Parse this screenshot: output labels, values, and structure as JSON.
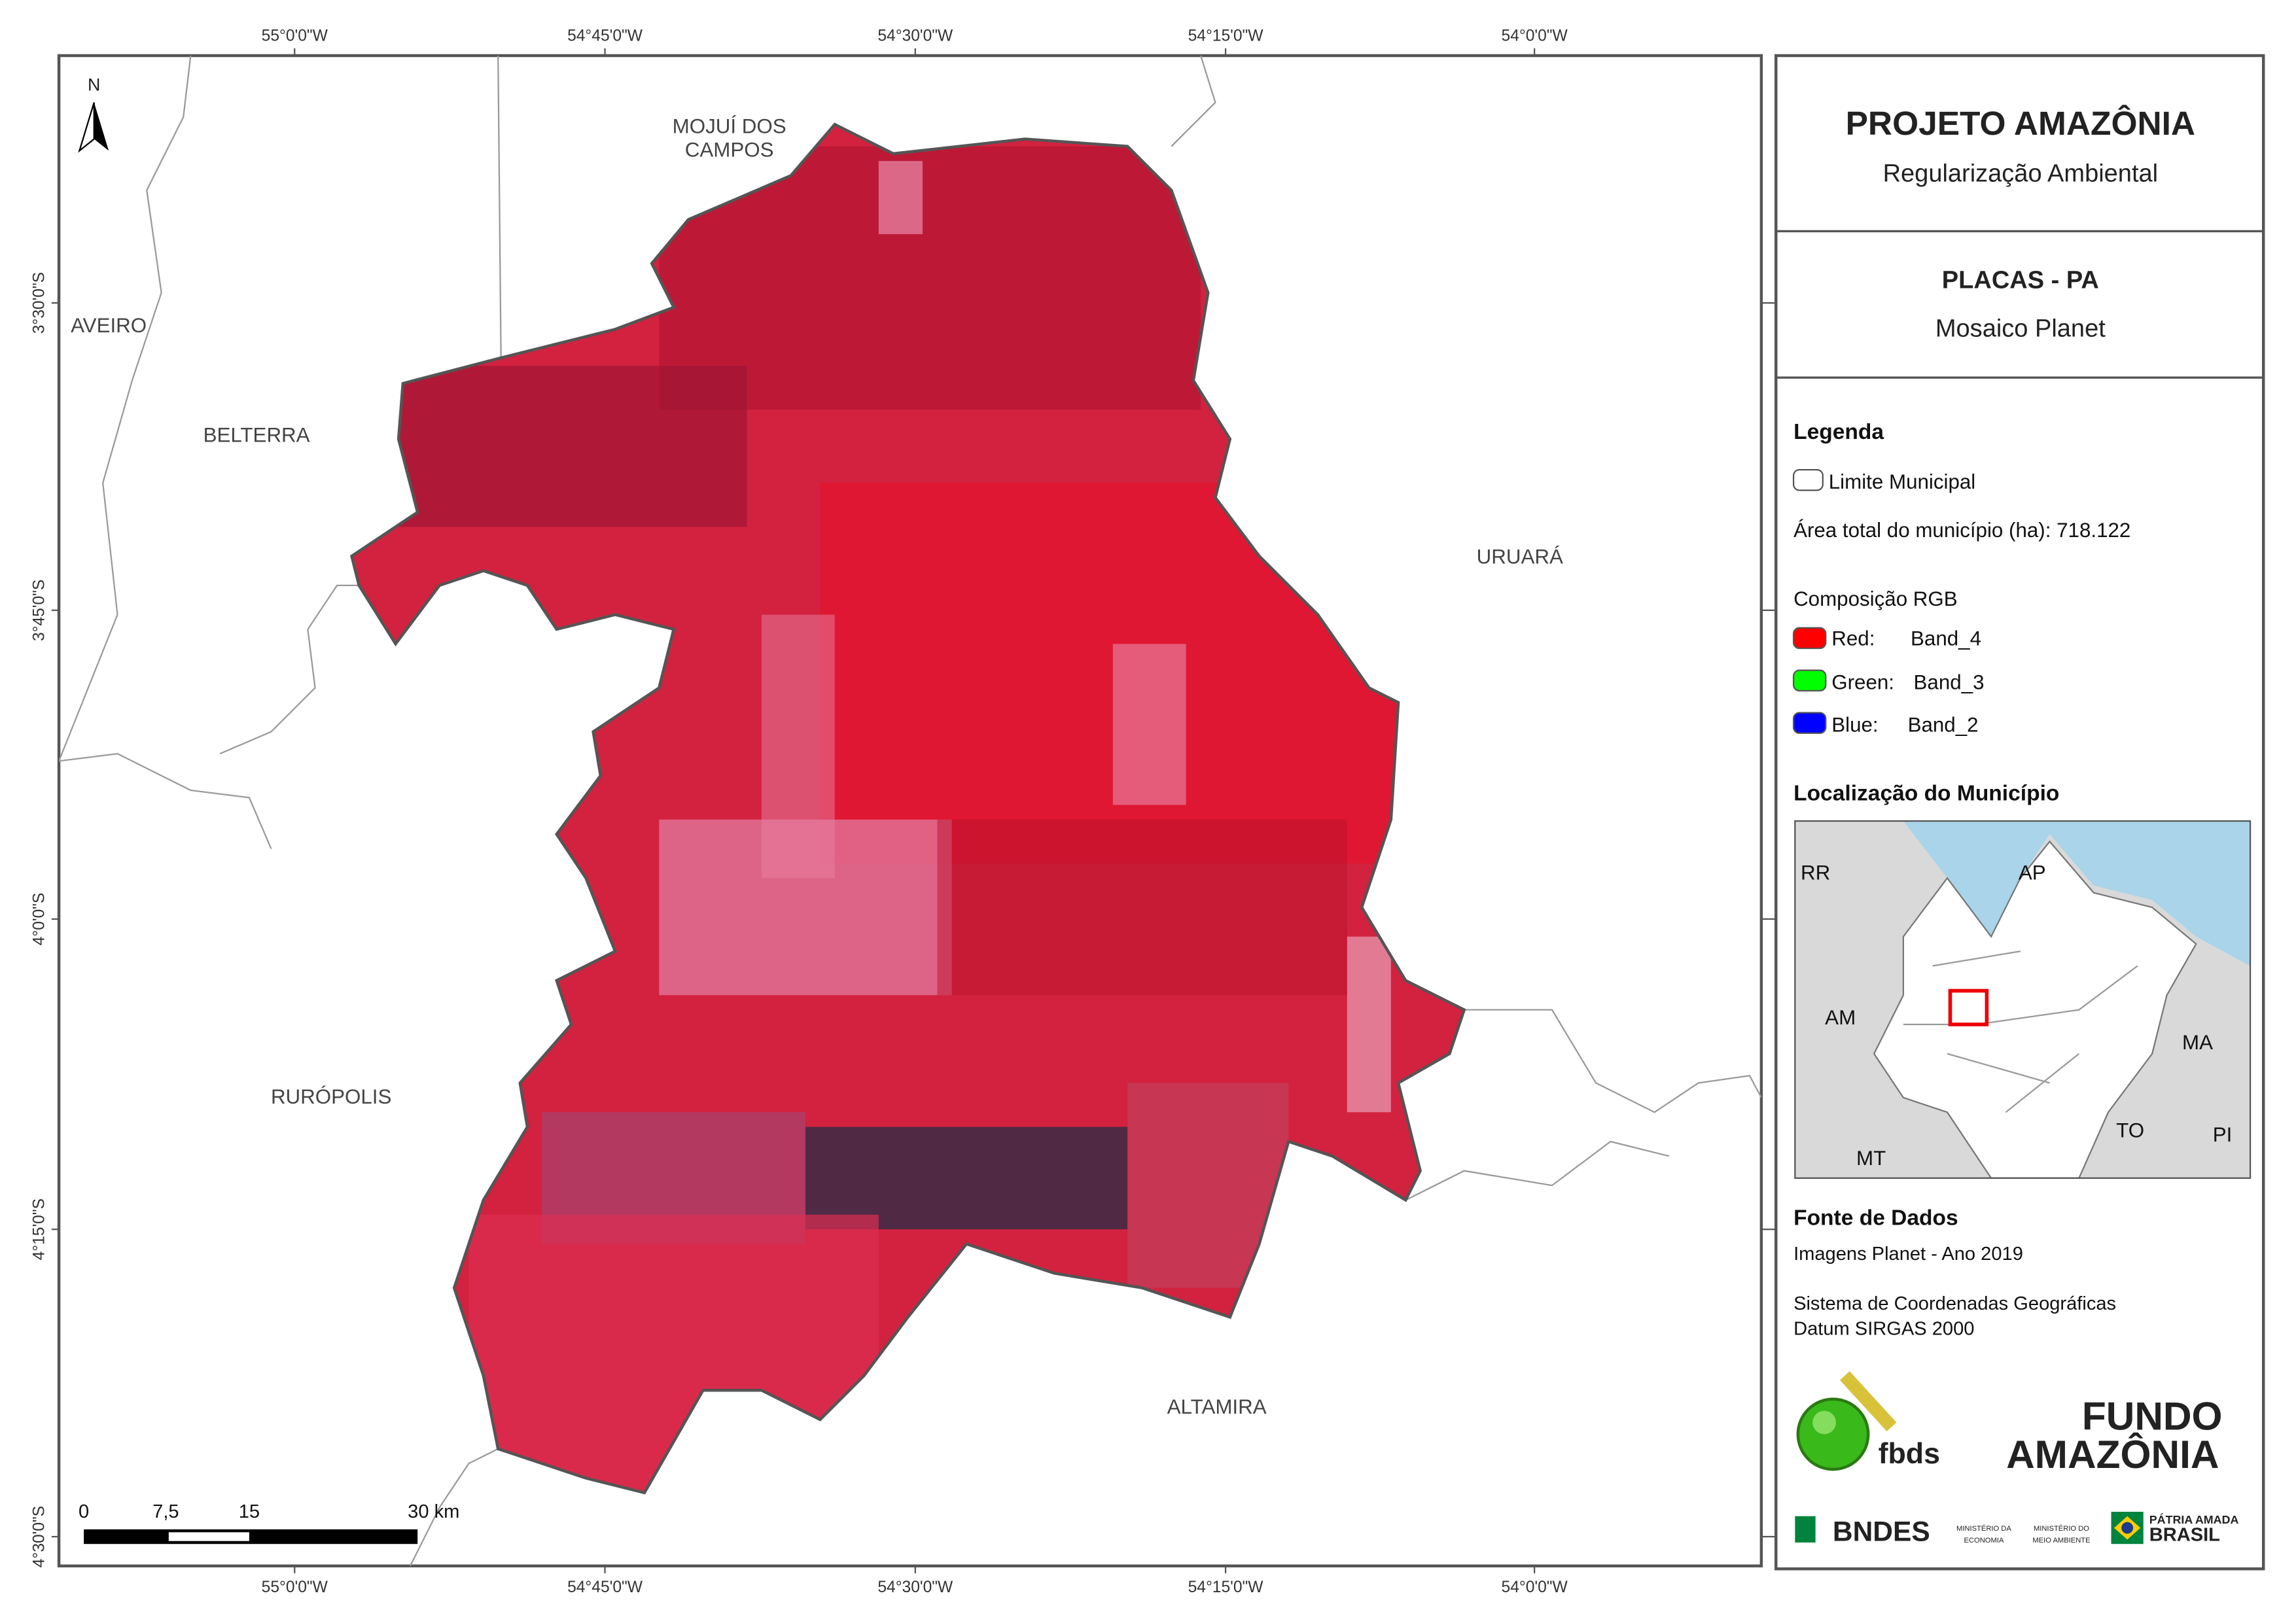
{
  "map": {
    "north": "N",
    "top_coords": [
      "55°0'0\"W",
      "54°45'0\"W",
      "54°30'0\"W",
      "54°15'0\"W",
      "54°0'0\"W"
    ],
    "left_coords": [
      "3°30'0\"S",
      "3°45'0\"S",
      "4°0'0\"S",
      "4°15'0\"S",
      "4°30'0\"S"
    ],
    "places": {
      "mojui": [
        "MOJUÍ DOS",
        "CAMPOS"
      ],
      "aveiro": "AVEIRO",
      "belterra": "BELTERRA",
      "uruara": "URUARÁ",
      "ruropolis": "RURÓPOLIS",
      "altamira": "ALTAMIRA"
    },
    "scale_bar": [
      "0",
      "7,5",
      "15",
      "30 km"
    ]
  },
  "panel": {
    "title": "PROJETO AMAZÔNIA",
    "subtitle": "Regularização Ambiental",
    "municipality": "PLACAS - PA",
    "mosaic": "Mosaico Planet",
    "legend_title": "Legenda",
    "legend_limit": "Limite Municipal",
    "area": "Área total do município (ha): 718.122",
    "rgb_title": "Composição RGB",
    "bands": [
      [
        "Red:",
        "Band_4"
      ],
      [
        "Green:",
        "Band_3"
      ],
      [
        "Blue:",
        "Band_2"
      ]
    ],
    "location_title": "Localização do Município",
    "inset_labels": [
      "RR",
      "AP",
      "AM",
      "MA",
      "TO",
      "PI",
      "MT"
    ],
    "sources_title": "Fonte de Dados",
    "source_1": "Imagens Planet - Ano 2019",
    "source_2": "Sistema de Coordenadas Geográficas",
    "source_3": "Datum SIRGAS 2000",
    "logos": {
      "fbds": "fbds",
      "fundo_1": "FUNDO",
      "fundo_2": "AMAZÔNIA",
      "bndes": "BNDES",
      "min_1": "MINISTÉRIO DA",
      "min_2": "ECONOMIA",
      "min_3": "MINISTÉRIO DO",
      "min_4": "MEIO AMBIENTE",
      "patria_1": "PÁTRIA AMADA",
      "patria_2": "BRASIL"
    }
  }
}
